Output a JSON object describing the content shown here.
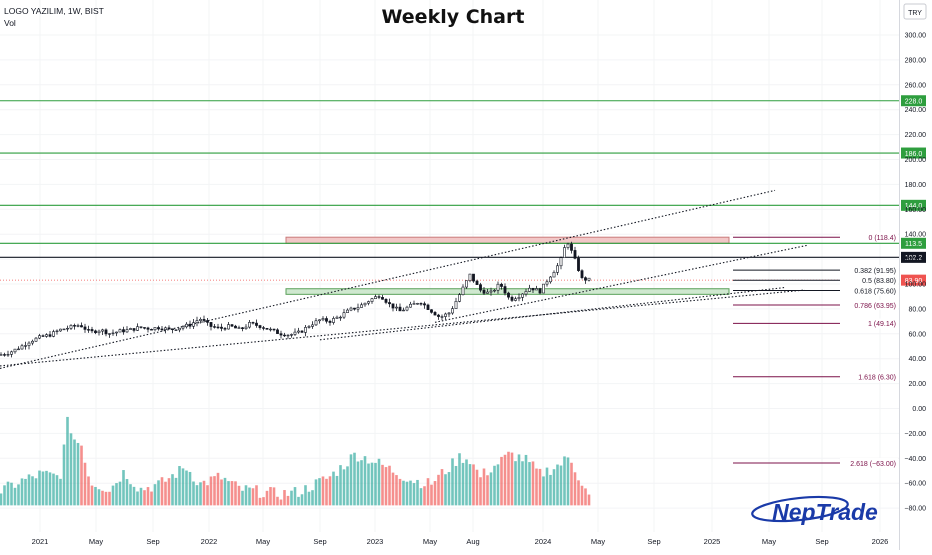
{
  "header": {
    "symbol_line": "LOGO YAZILIM, 1W, BIST",
    "volume_label": "Vol",
    "chart_title": "Weekly Chart",
    "currency": "TRY"
  },
  "watermark": {
    "brand": "NepTrade"
  },
  "colors": {
    "up": "#26a69a",
    "down": "#ef5350",
    "candle": "#131722",
    "level_green": "#2e9e3e",
    "fib": "#7b1048",
    "trend": "#131722",
    "resistance_zone_fill": "#f2c7c7",
    "support_zone_fill": "#cfe8cf"
  },
  "chart_data": {
    "type": "candlestick",
    "price_axis": {
      "ticks": [
        "300.00",
        "280.00",
        "260.00",
        "240.00",
        "220.00",
        "200.00",
        "180.00",
        "160.00",
        "140.00",
        "120.00",
        "100.00",
        "80.00",
        "60.00",
        "40.00",
        "20.00",
        "0.00",
        "−20.00",
        "−40.00",
        "−60.00",
        "−80.00"
      ],
      "ylim": [
        -100,
        315
      ]
    },
    "time_axis": {
      "ticks": [
        "2021",
        "May",
        "Sep",
        "2022",
        "May",
        "Sep",
        "2023",
        "May",
        "Aug",
        "2024",
        "May",
        "Sep",
        "2025",
        "May",
        "Sep",
        "2026"
      ]
    },
    "horizontal_levels": [
      {
        "price": 228.0,
        "label": "228.0",
        "style": "green"
      },
      {
        "price": 186.0,
        "label": "186.0",
        "style": "green"
      },
      {
        "price": 144.0,
        "label": "144.0",
        "style": "green"
      },
      {
        "price": 113.5,
        "label": "113.5",
        "style": "green"
      },
      {
        "price": 102.2,
        "label": "102.2",
        "style": "black"
      }
    ],
    "last_price": {
      "price": 83.9,
      "label": "83.90"
    },
    "fibonacci": [
      {
        "ratio": "0",
        "price": 118.4,
        "label": "0 (118.4)"
      },
      {
        "ratio": "0.382",
        "price": 91.95,
        "label": "0.382 (91.95)"
      },
      {
        "ratio": "0.5",
        "price": 83.8,
        "label": "0.5 (83.80)"
      },
      {
        "ratio": "0.618",
        "price": 75.6,
        "label": "0.618 (75.60)"
      },
      {
        "ratio": "0.786",
        "price": 63.95,
        "label": "0.786 (63.95)"
      },
      {
        "ratio": "1",
        "price": 49.14,
        "label": "1 (49.14)"
      },
      {
        "ratio": "1.618",
        "price": 6.3,
        "label": "1.618 (6.30)"
      },
      {
        "ratio": "2.618",
        "price": -63.0,
        "label": "2.618 (−63.00)"
      }
    ],
    "zones": [
      {
        "kind": "resistance",
        "from": 113.5,
        "to": 118.4
      },
      {
        "kind": "support",
        "from": 72.5,
        "to": 77.0
      }
    ],
    "price_path": [
      [
        0,
        24
      ],
      [
        10,
        26
      ],
      [
        20,
        30
      ],
      [
        30,
        35
      ],
      [
        40,
        38
      ],
      [
        50,
        40
      ],
      [
        60,
        44
      ],
      [
        70,
        46
      ],
      [
        80,
        48
      ],
      [
        90,
        42
      ],
      [
        100,
        44
      ],
      [
        110,
        41
      ],
      [
        120,
        43
      ],
      [
        130,
        44
      ],
      [
        140,
        46
      ],
      [
        150,
        45
      ],
      [
        160,
        46
      ],
      [
        170,
        44
      ],
      [
        180,
        46
      ],
      [
        190,
        48
      ],
      [
        200,
        53
      ],
      [
        210,
        47
      ],
      [
        220,
        45
      ],
      [
        230,
        47
      ],
      [
        240,
        44
      ],
      [
        250,
        49
      ],
      [
        260,
        47
      ],
      [
        270,
        44
      ],
      [
        280,
        41
      ],
      [
        290,
        40
      ],
      [
        300,
        42
      ],
      [
        310,
        48
      ],
      [
        320,
        52
      ],
      [
        330,
        51
      ],
      [
        340,
        55
      ],
      [
        350,
        60
      ],
      [
        360,
        63
      ],
      [
        370,
        68
      ],
      [
        380,
        72
      ],
      [
        390,
        64
      ],
      [
        400,
        59
      ],
      [
        410,
        63
      ],
      [
        420,
        67
      ],
      [
        430,
        60
      ],
      [
        440,
        54
      ],
      [
        450,
        58
      ],
      [
        460,
        73
      ],
      [
        470,
        88
      ],
      [
        480,
        76
      ],
      [
        490,
        73
      ],
      [
        500,
        81
      ],
      [
        510,
        68
      ],
      [
        520,
        72
      ],
      [
        530,
        78
      ],
      [
        540,
        75
      ],
      [
        550,
        87
      ],
      [
        560,
        98
      ],
      [
        567,
        116
      ],
      [
        575,
        100
      ],
      [
        582,
        85
      ],
      [
        590,
        84
      ]
    ],
    "volume_path": [
      [
        0,
        -86
      ],
      [
        20,
        -78
      ],
      [
        40,
        -72
      ],
      [
        60,
        -74
      ],
      [
        68,
        -28
      ],
      [
        75,
        -45
      ],
      [
        82,
        -48
      ],
      [
        90,
        -78
      ],
      [
        110,
        -84
      ],
      [
        124,
        -70
      ],
      [
        140,
        -84
      ],
      [
        160,
        -80
      ],
      [
        186,
        -66
      ],
      [
        200,
        -80
      ],
      [
        220,
        -74
      ],
      [
        240,
        -84
      ],
      [
        260,
        -86
      ],
      [
        280,
        -88
      ],
      [
        300,
        -86
      ],
      [
        330,
        -74
      ],
      [
        345,
        -64
      ],
      [
        355,
        -56
      ],
      [
        370,
        -60
      ],
      [
        390,
        -68
      ],
      [
        410,
        -76
      ],
      [
        430,
        -80
      ],
      [
        450,
        -66
      ],
      [
        460,
        -58
      ],
      [
        470,
        -60
      ],
      [
        480,
        -74
      ],
      [
        500,
        -62
      ],
      [
        510,
        -56
      ],
      [
        525,
        -60
      ],
      [
        540,
        -72
      ],
      [
        560,
        -64
      ],
      [
        570,
        -58
      ],
      [
        580,
        -76
      ],
      [
        590,
        -92
      ]
    ],
    "trendlines": [
      {
        "name": "upper-channel",
        "from": [
          0,
          13
        ],
        "to": [
          775,
          156
        ]
      },
      {
        "name": "mid-channel",
        "from": [
          435,
          50
        ],
        "to": [
          808,
          112
        ]
      },
      {
        "name": "lower-channel",
        "from": [
          320,
          36
        ],
        "to": [
          785,
          78
        ]
      },
      {
        "name": "long-support",
        "from": [
          0,
          15
        ],
        "to": [
          805,
          76
        ]
      }
    ]
  }
}
